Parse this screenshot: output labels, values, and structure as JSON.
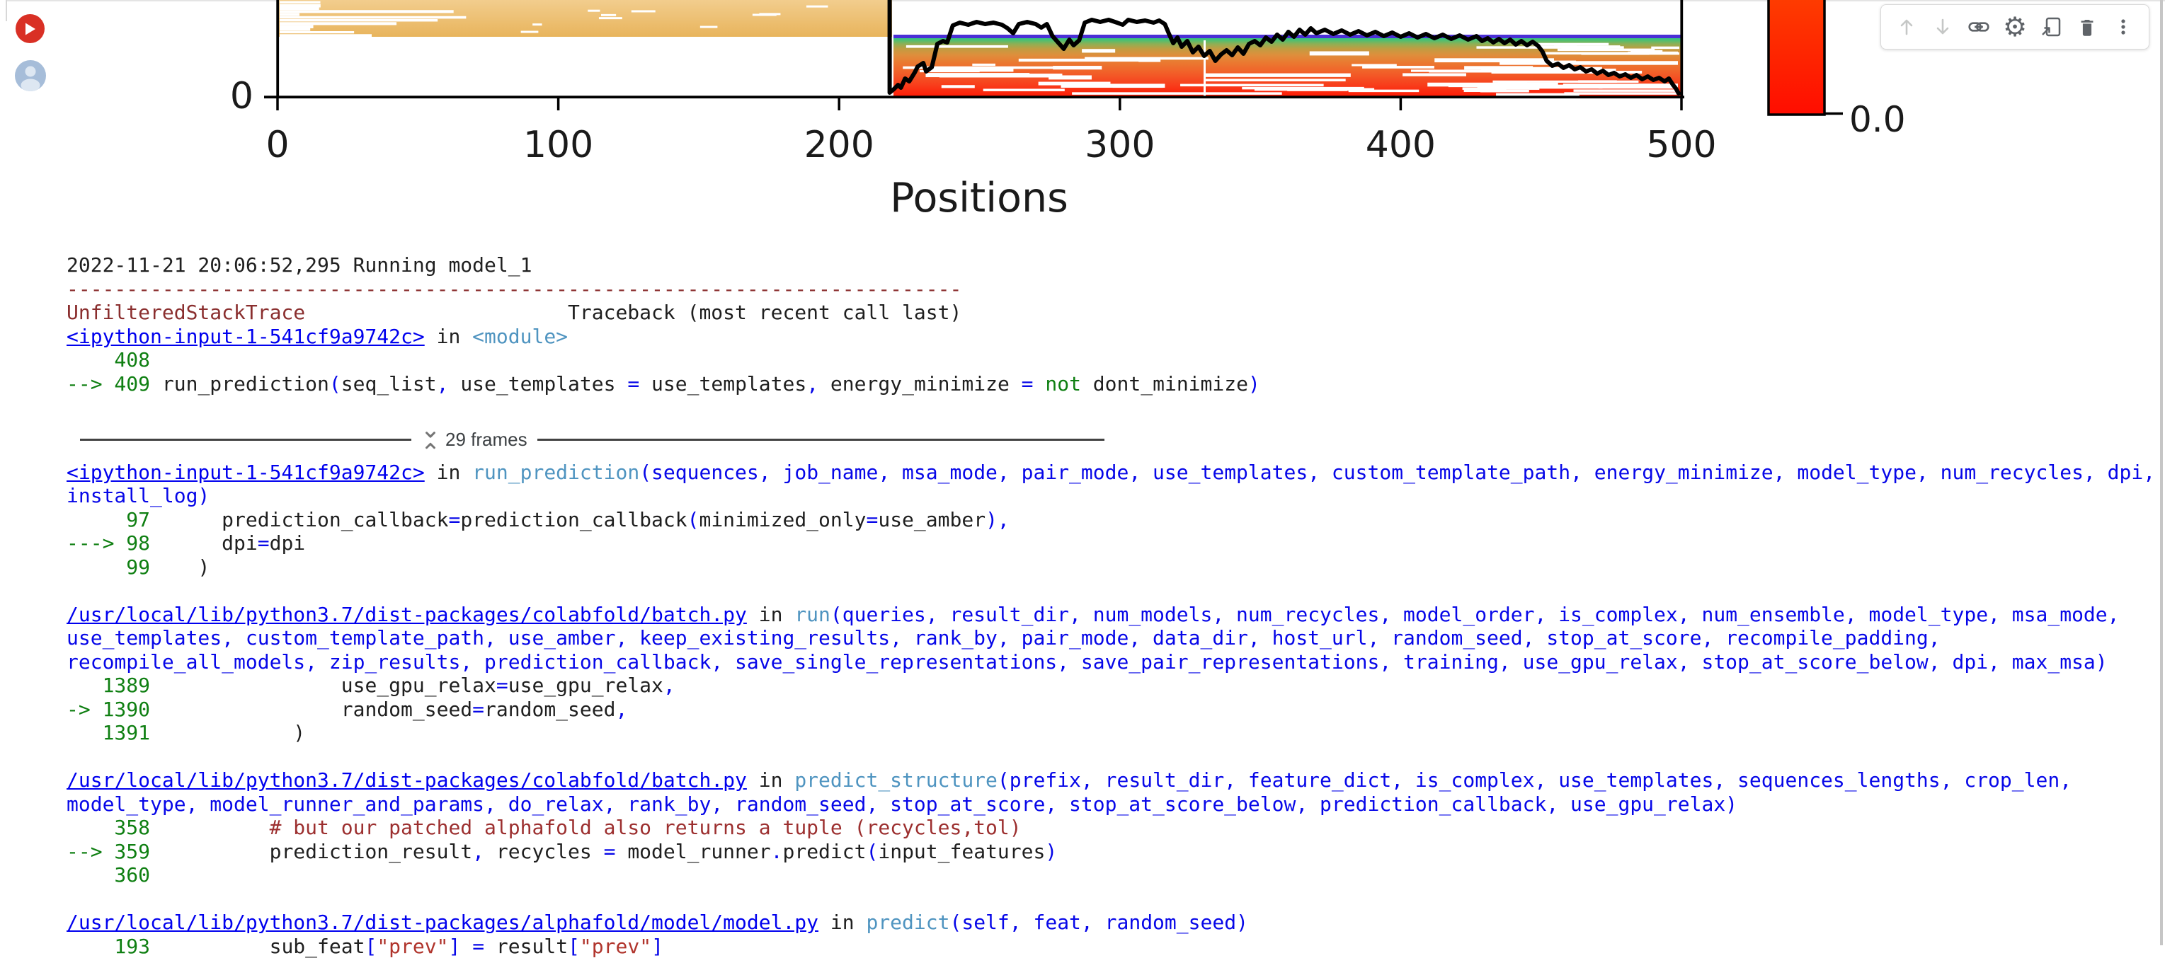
{
  "colors": {
    "run_button_red": "#d93025",
    "avatar_blue": "#a6bdd9",
    "toolbar_icon_gray": "#5f6368",
    "toolbar_icon_disabled": "#c5c7c6",
    "link_blue": "#0000ee",
    "operator_blue": "#0707e8",
    "function_cyan": "#4f94c0",
    "lineno_green": "#0f7f12",
    "exception_red": "#8a2e2e",
    "comment_red": "#9c2f2f",
    "string_red": "#b0342c",
    "msa_tan": "#ecbc68",
    "msa_purple_line": "#4b2fd6",
    "colorbar_red": "#ff1500"
  },
  "icons": {
    "run_button": "play-circle",
    "collab_avatar": "person-circle",
    "frames_toggle": "unfold-less-icon"
  },
  "toolbar": {
    "icons": [
      {
        "id": "move-cell-up",
        "icon": "arrow-up",
        "disabled": true
      },
      {
        "id": "move-cell-down",
        "icon": "arrow-down",
        "disabled": true
      },
      {
        "id": "copy-link",
        "icon": "link",
        "disabled": false
      },
      {
        "id": "settings",
        "icon": "gear",
        "disabled": false
      },
      {
        "id": "open-in-tab",
        "icon": "open-tab",
        "disabled": false
      },
      {
        "id": "delete-cell",
        "icon": "trash",
        "disabled": false
      },
      {
        "id": "more-options",
        "icon": "more-vert",
        "disabled": false
      }
    ]
  },
  "chart_data": {
    "type": "heatmap",
    "title": "",
    "xlabel": "Positions",
    "ylabel": "",
    "xlim": [
      0,
      500
    ],
    "grid": false,
    "x_ticks": [
      {
        "v": 0,
        "label": "0"
      },
      {
        "v": 100,
        "label": "100"
      },
      {
        "v": 200,
        "label": "200"
      },
      {
        "v": 300,
        "label": "300"
      },
      {
        "v": 400,
        "label": "400"
      },
      {
        "v": 500,
        "label": "500"
      }
    ],
    "y_ticks": [
      {
        "label": "0"
      }
    ],
    "colorbar": {
      "bottom_tick_label": "0.0"
    },
    "msa_left_block_positions": [
      0,
      220
    ],
    "msa_right_block_positions": [
      220,
      500
    ],
    "coverage_line": [
      [
        218,
        -14
      ],
      [
        218,
        131
      ],
      [
        219.5,
        126
      ],
      [
        221,
        120
      ],
      [
        222,
        124
      ],
      [
        223.5,
        111
      ],
      [
        225,
        115
      ],
      [
        227,
        102
      ],
      [
        228,
        94
      ],
      [
        230,
        89
      ],
      [
        231,
        101
      ],
      [
        233,
        95
      ],
      [
        235,
        62
      ],
      [
        237,
        58
      ],
      [
        238.5,
        60
      ],
      [
        240.5,
        36
      ],
      [
        243,
        32
      ],
      [
        246,
        35
      ],
      [
        249,
        31
      ],
      [
        252,
        34
      ],
      [
        255,
        32
      ],
      [
        258,
        35
      ],
      [
        260,
        40
      ],
      [
        262,
        47
      ],
      [
        264,
        34
      ],
      [
        267,
        31
      ],
      [
        270,
        34
      ],
      [
        272,
        39
      ],
      [
        274,
        34
      ],
      [
        276,
        51
      ],
      [
        278,
        60
      ],
      [
        280,
        69
      ],
      [
        282,
        56
      ],
      [
        283.5,
        64
      ],
      [
        285.5,
        57
      ],
      [
        287.5,
        32
      ],
      [
        290,
        28
      ],
      [
        293,
        31
      ],
      [
        296,
        28
      ],
      [
        299,
        32
      ],
      [
        301,
        35
      ],
      [
        303,
        28
      ],
      [
        306,
        31
      ],
      [
        309,
        29
      ],
      [
        312,
        32
      ],
      [
        314,
        29
      ],
      [
        316,
        34
      ],
      [
        317.5,
        48
      ],
      [
        319,
        61
      ],
      [
        320.5,
        53
      ],
      [
        322,
        66
      ],
      [
        324,
        58
      ],
      [
        326,
        74
      ],
      [
        328,
        66
      ],
      [
        330,
        79
      ],
      [
        332,
        72
      ],
      [
        334,
        86
      ],
      [
        336,
        77
      ],
      [
        338,
        71
      ],
      [
        340,
        78
      ],
      [
        342,
        67
      ],
      [
        344,
        76
      ],
      [
        346,
        62
      ],
      [
        348,
        58
      ],
      [
        350,
        64
      ],
      [
        352,
        53
      ],
      [
        354,
        59
      ],
      [
        356,
        49
      ],
      [
        358,
        56
      ],
      [
        360,
        45
      ],
      [
        362,
        52
      ],
      [
        364,
        42
      ],
      [
        366,
        49
      ],
      [
        368,
        40
      ],
      [
        370,
        47
      ],
      [
        373,
        42
      ],
      [
        376,
        48
      ],
      [
        379,
        43
      ],
      [
        382,
        49
      ],
      [
        385,
        44
      ],
      [
        388,
        50
      ],
      [
        391,
        45
      ],
      [
        394,
        51
      ],
      [
        397,
        46
      ],
      [
        400,
        52
      ],
      [
        403,
        47
      ],
      [
        406,
        53
      ],
      [
        409,
        48
      ],
      [
        412,
        54
      ],
      [
        415,
        49
      ],
      [
        418,
        55
      ],
      [
        421,
        50
      ],
      [
        424,
        56
      ],
      [
        427,
        51
      ],
      [
        429,
        58
      ],
      [
        431,
        54
      ],
      [
        433,
        60
      ],
      [
        435,
        55
      ],
      [
        437,
        61
      ],
      [
        439,
        56
      ],
      [
        441,
        63
      ],
      [
        443,
        58
      ],
      [
        445,
        64
      ],
      [
        447,
        59
      ],
      [
        449,
        65
      ],
      [
        450.5,
        73
      ],
      [
        452,
        86
      ],
      [
        454,
        93
      ],
      [
        456,
        90
      ],
      [
        458,
        96
      ],
      [
        460,
        92
      ],
      [
        462,
        98
      ],
      [
        464,
        95
      ],
      [
        466,
        101
      ],
      [
        468,
        98
      ],
      [
        470,
        104
      ],
      [
        472,
        100
      ],
      [
        474,
        106
      ],
      [
        476,
        103
      ],
      [
        478,
        108
      ],
      [
        480,
        105
      ],
      [
        482,
        110
      ],
      [
        484,
        106
      ],
      [
        486,
        112
      ],
      [
        488,
        108
      ],
      [
        490,
        113
      ],
      [
        492,
        110
      ],
      [
        494,
        115
      ],
      [
        495.5,
        111
      ],
      [
        497,
        120
      ],
      [
        498,
        125
      ],
      [
        499,
        132
      ]
    ]
  },
  "traceback": {
    "frames_label": "29 frames",
    "lines": [
      {
        "s": [
          [
            "k",
            "2022-11-21 20:06:52,295 Running model_1"
          ]
        ]
      },
      {
        "s": [
          [
            "err",
            "---------------------------------------------------------------------------"
          ]
        ]
      },
      {
        "s": [
          [
            "err",
            "UnfilteredStackTrace"
          ],
          [
            "k",
            "                      Traceback (most recent call last)"
          ]
        ]
      },
      {
        "s": [
          [
            "lnk",
            "<ipython-input-1-541cf9a9742c>"
          ],
          [
            "k",
            " in "
          ],
          [
            "cyn",
            "<module>"
          ]
        ]
      },
      {
        "s": [
          [
            "grn",
            "    408"
          ]
        ]
      },
      {
        "s": [
          [
            "grn",
            "--> 409"
          ],
          [
            "k",
            " run_prediction"
          ],
          [
            "blu",
            "("
          ],
          [
            "k",
            "seq_list"
          ],
          [
            "blu",
            ","
          ],
          [
            "k",
            " use_templates "
          ],
          [
            "blu",
            "="
          ],
          [
            "k",
            " use_templates"
          ],
          [
            "blu",
            ","
          ],
          [
            "k",
            " energy_minimize "
          ],
          [
            "blu",
            "="
          ],
          [
            "grn",
            " not"
          ],
          [
            "k",
            " dont_minimize"
          ],
          [
            "blu",
            ")"
          ]
        ]
      },
      {
        "s": []
      },
      {
        "divider": true
      },
      {
        "s": [
          [
            "lnk",
            "<ipython-input-1-541cf9a9742c>"
          ],
          [
            "k",
            " in "
          ],
          [
            "cyn",
            "run_prediction"
          ],
          [
            "blu",
            "(sequences, job_name, msa_mode, pair_mode, use_templates, custom_template_path, energy_minimize, model_type, num_recycles, dpi,"
          ]
        ]
      },
      {
        "s": [
          [
            "blu",
            "install_log)"
          ]
        ]
      },
      {
        "s": [
          [
            "grn",
            "     97"
          ],
          [
            "k",
            "      prediction_callback"
          ],
          [
            "blu",
            "="
          ],
          [
            "k",
            "prediction_callback"
          ],
          [
            "blu",
            "("
          ],
          [
            "k",
            "minimized_only"
          ],
          [
            "blu",
            "="
          ],
          [
            "k",
            "use_amber"
          ],
          [
            "blu",
            "),"
          ]
        ]
      },
      {
        "s": [
          [
            "grn",
            "---> 98"
          ],
          [
            "k",
            "      dpi"
          ],
          [
            "blu",
            "="
          ],
          [
            "k",
            "dpi"
          ]
        ]
      },
      {
        "s": [
          [
            "grn",
            "     99"
          ],
          [
            "k",
            "    )"
          ]
        ]
      },
      {
        "s": []
      },
      {
        "s": [
          [
            "lnk",
            "/usr/local/lib/python3.7/dist-packages/colabfold/batch.py"
          ],
          [
            "k",
            " in "
          ],
          [
            "cyn",
            "run"
          ],
          [
            "blu",
            "(queries, result_dir, num_models, num_recycles, model_order, is_complex, num_ensemble, model_type, msa_mode,"
          ]
        ]
      },
      {
        "s": [
          [
            "blu",
            "use_templates, custom_template_path, use_amber, keep_existing_results, rank_by, pair_mode, data_dir, host_url, random_seed, stop_at_score, recompile_padding,"
          ]
        ]
      },
      {
        "s": [
          [
            "blu",
            "recompile_all_models, zip_results, prediction_callback, save_single_representations, save_pair_representations, training, use_gpu_relax, stop_at_score_below, dpi, max_msa)"
          ]
        ]
      },
      {
        "s": [
          [
            "grn",
            "   1389"
          ],
          [
            "k",
            "                use_gpu_relax"
          ],
          [
            "blu",
            "="
          ],
          [
            "k",
            "use_gpu_relax"
          ],
          [
            "blu",
            ","
          ]
        ]
      },
      {
        "s": [
          [
            "grn",
            "-> 1390"
          ],
          [
            "k",
            "                random_seed"
          ],
          [
            "blu",
            "="
          ],
          [
            "k",
            "random_seed"
          ],
          [
            "blu",
            ","
          ]
        ]
      },
      {
        "s": [
          [
            "grn",
            "   1391"
          ],
          [
            "k",
            "            )"
          ]
        ]
      },
      {
        "s": []
      },
      {
        "s": [
          [
            "lnk",
            "/usr/local/lib/python3.7/dist-packages/colabfold/batch.py"
          ],
          [
            "k",
            " in "
          ],
          [
            "cyn",
            "predict_structure"
          ],
          [
            "blu",
            "(prefix, result_dir, feature_dict, is_complex, use_templates, sequences_lengths, crop_len,"
          ]
        ]
      },
      {
        "s": [
          [
            "blu",
            "model_type, model_runner_and_params, do_relax, rank_by, random_seed, stop_at_score, stop_at_score_below, prediction_callback, use_gpu_relax)"
          ]
        ]
      },
      {
        "s": [
          [
            "grn",
            "    358"
          ],
          [
            "cmt",
            "          # but our patched alphafold also returns a tuple (recycles,tol)"
          ]
        ]
      },
      {
        "s": [
          [
            "grn",
            "--> 359"
          ],
          [
            "k",
            "          prediction_result"
          ],
          [
            "blu",
            ","
          ],
          [
            "k",
            " recycles "
          ],
          [
            "blu",
            "="
          ],
          [
            "k",
            " model_runner"
          ],
          [
            "blu",
            "."
          ],
          [
            "k",
            "predict"
          ],
          [
            "blu",
            "("
          ],
          [
            "k",
            "input_features"
          ],
          [
            "blu",
            ")"
          ]
        ]
      },
      {
        "s": [
          [
            "grn",
            "    360"
          ]
        ]
      },
      {
        "s": []
      },
      {
        "s": [
          [
            "lnk",
            "/usr/local/lib/python3.7/dist-packages/alphafold/model/model.py"
          ],
          [
            "k",
            " in "
          ],
          [
            "cyn",
            "predict"
          ],
          [
            "blu",
            "(self, feat, random_seed)"
          ]
        ]
      },
      {
        "s": [
          [
            "grn",
            "    193"
          ],
          [
            "k",
            "          sub_feat"
          ],
          [
            "blu",
            "["
          ],
          [
            "str",
            "\"prev\""
          ],
          [
            "blu",
            "]"
          ],
          [
            "k",
            " "
          ],
          [
            "blu",
            "="
          ],
          [
            "k",
            " result"
          ],
          [
            "blu",
            "["
          ],
          [
            "str",
            "\"prev\""
          ],
          [
            "blu",
            "]"
          ]
        ]
      }
    ]
  }
}
